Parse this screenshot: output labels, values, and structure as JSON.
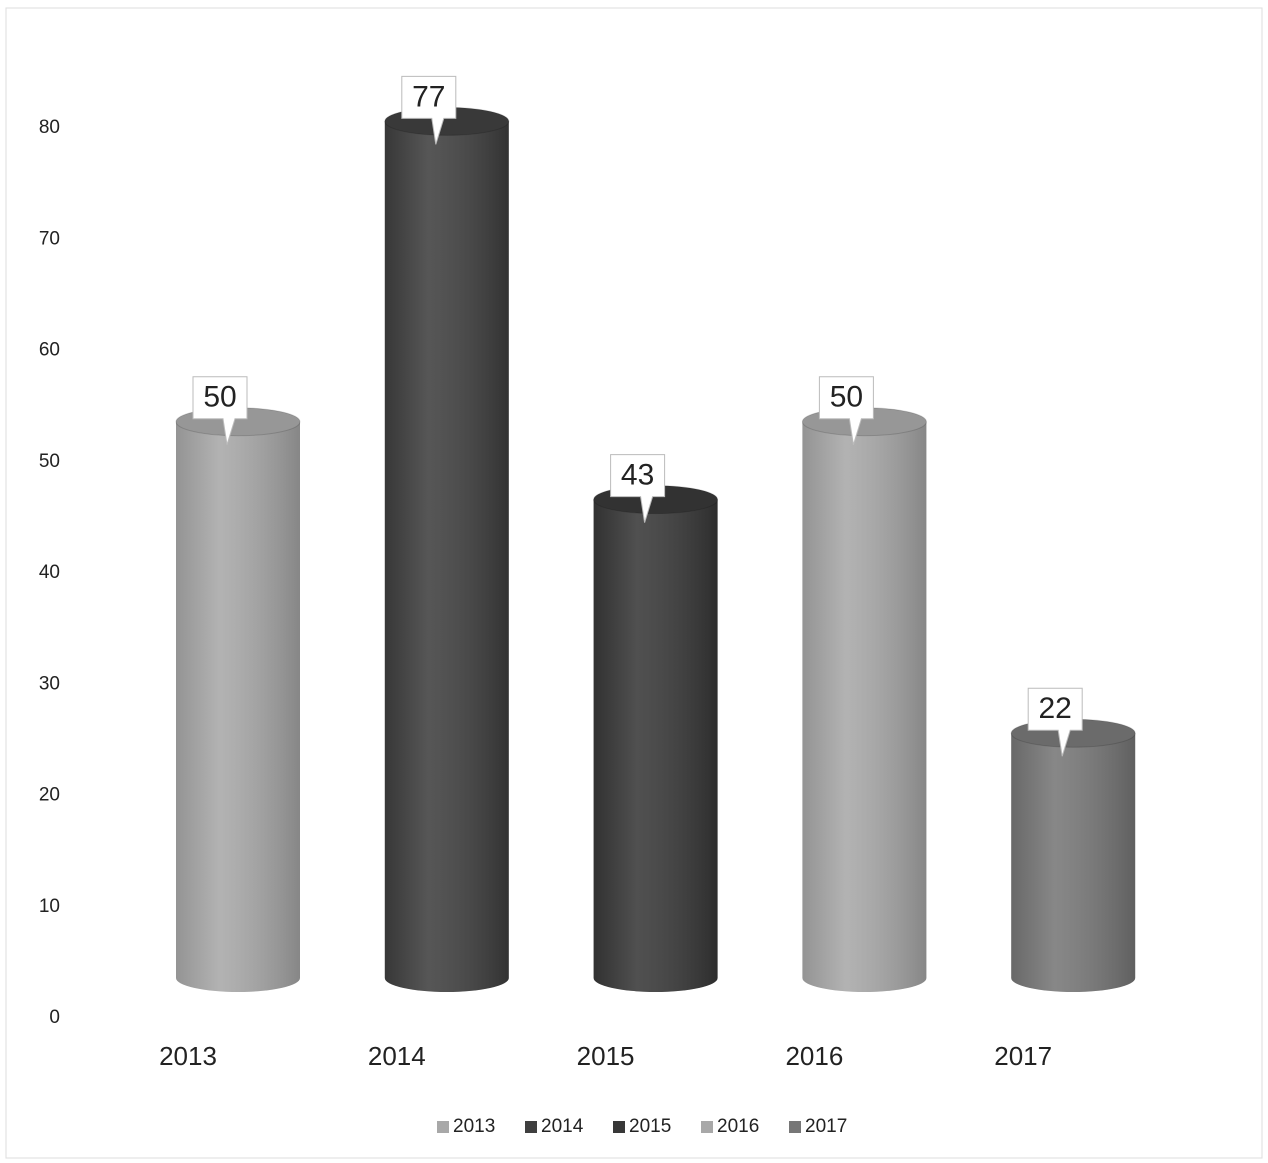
{
  "chart_data": {
    "type": "bar",
    "categories": [
      "2013",
      "2014",
      "2015",
      "2016",
      "2017"
    ],
    "values": [
      50,
      77,
      43,
      50,
      22
    ],
    "colors": [
      "#a8a8a8",
      "#3f3f3f",
      "#383838",
      "#a8a8a8",
      "#777777"
    ],
    "ylim": [
      0,
      80
    ],
    "yticks": [
      0,
      10,
      20,
      30,
      40,
      50,
      60,
      70,
      80
    ],
    "grid": false,
    "legend": "bottom"
  }
}
